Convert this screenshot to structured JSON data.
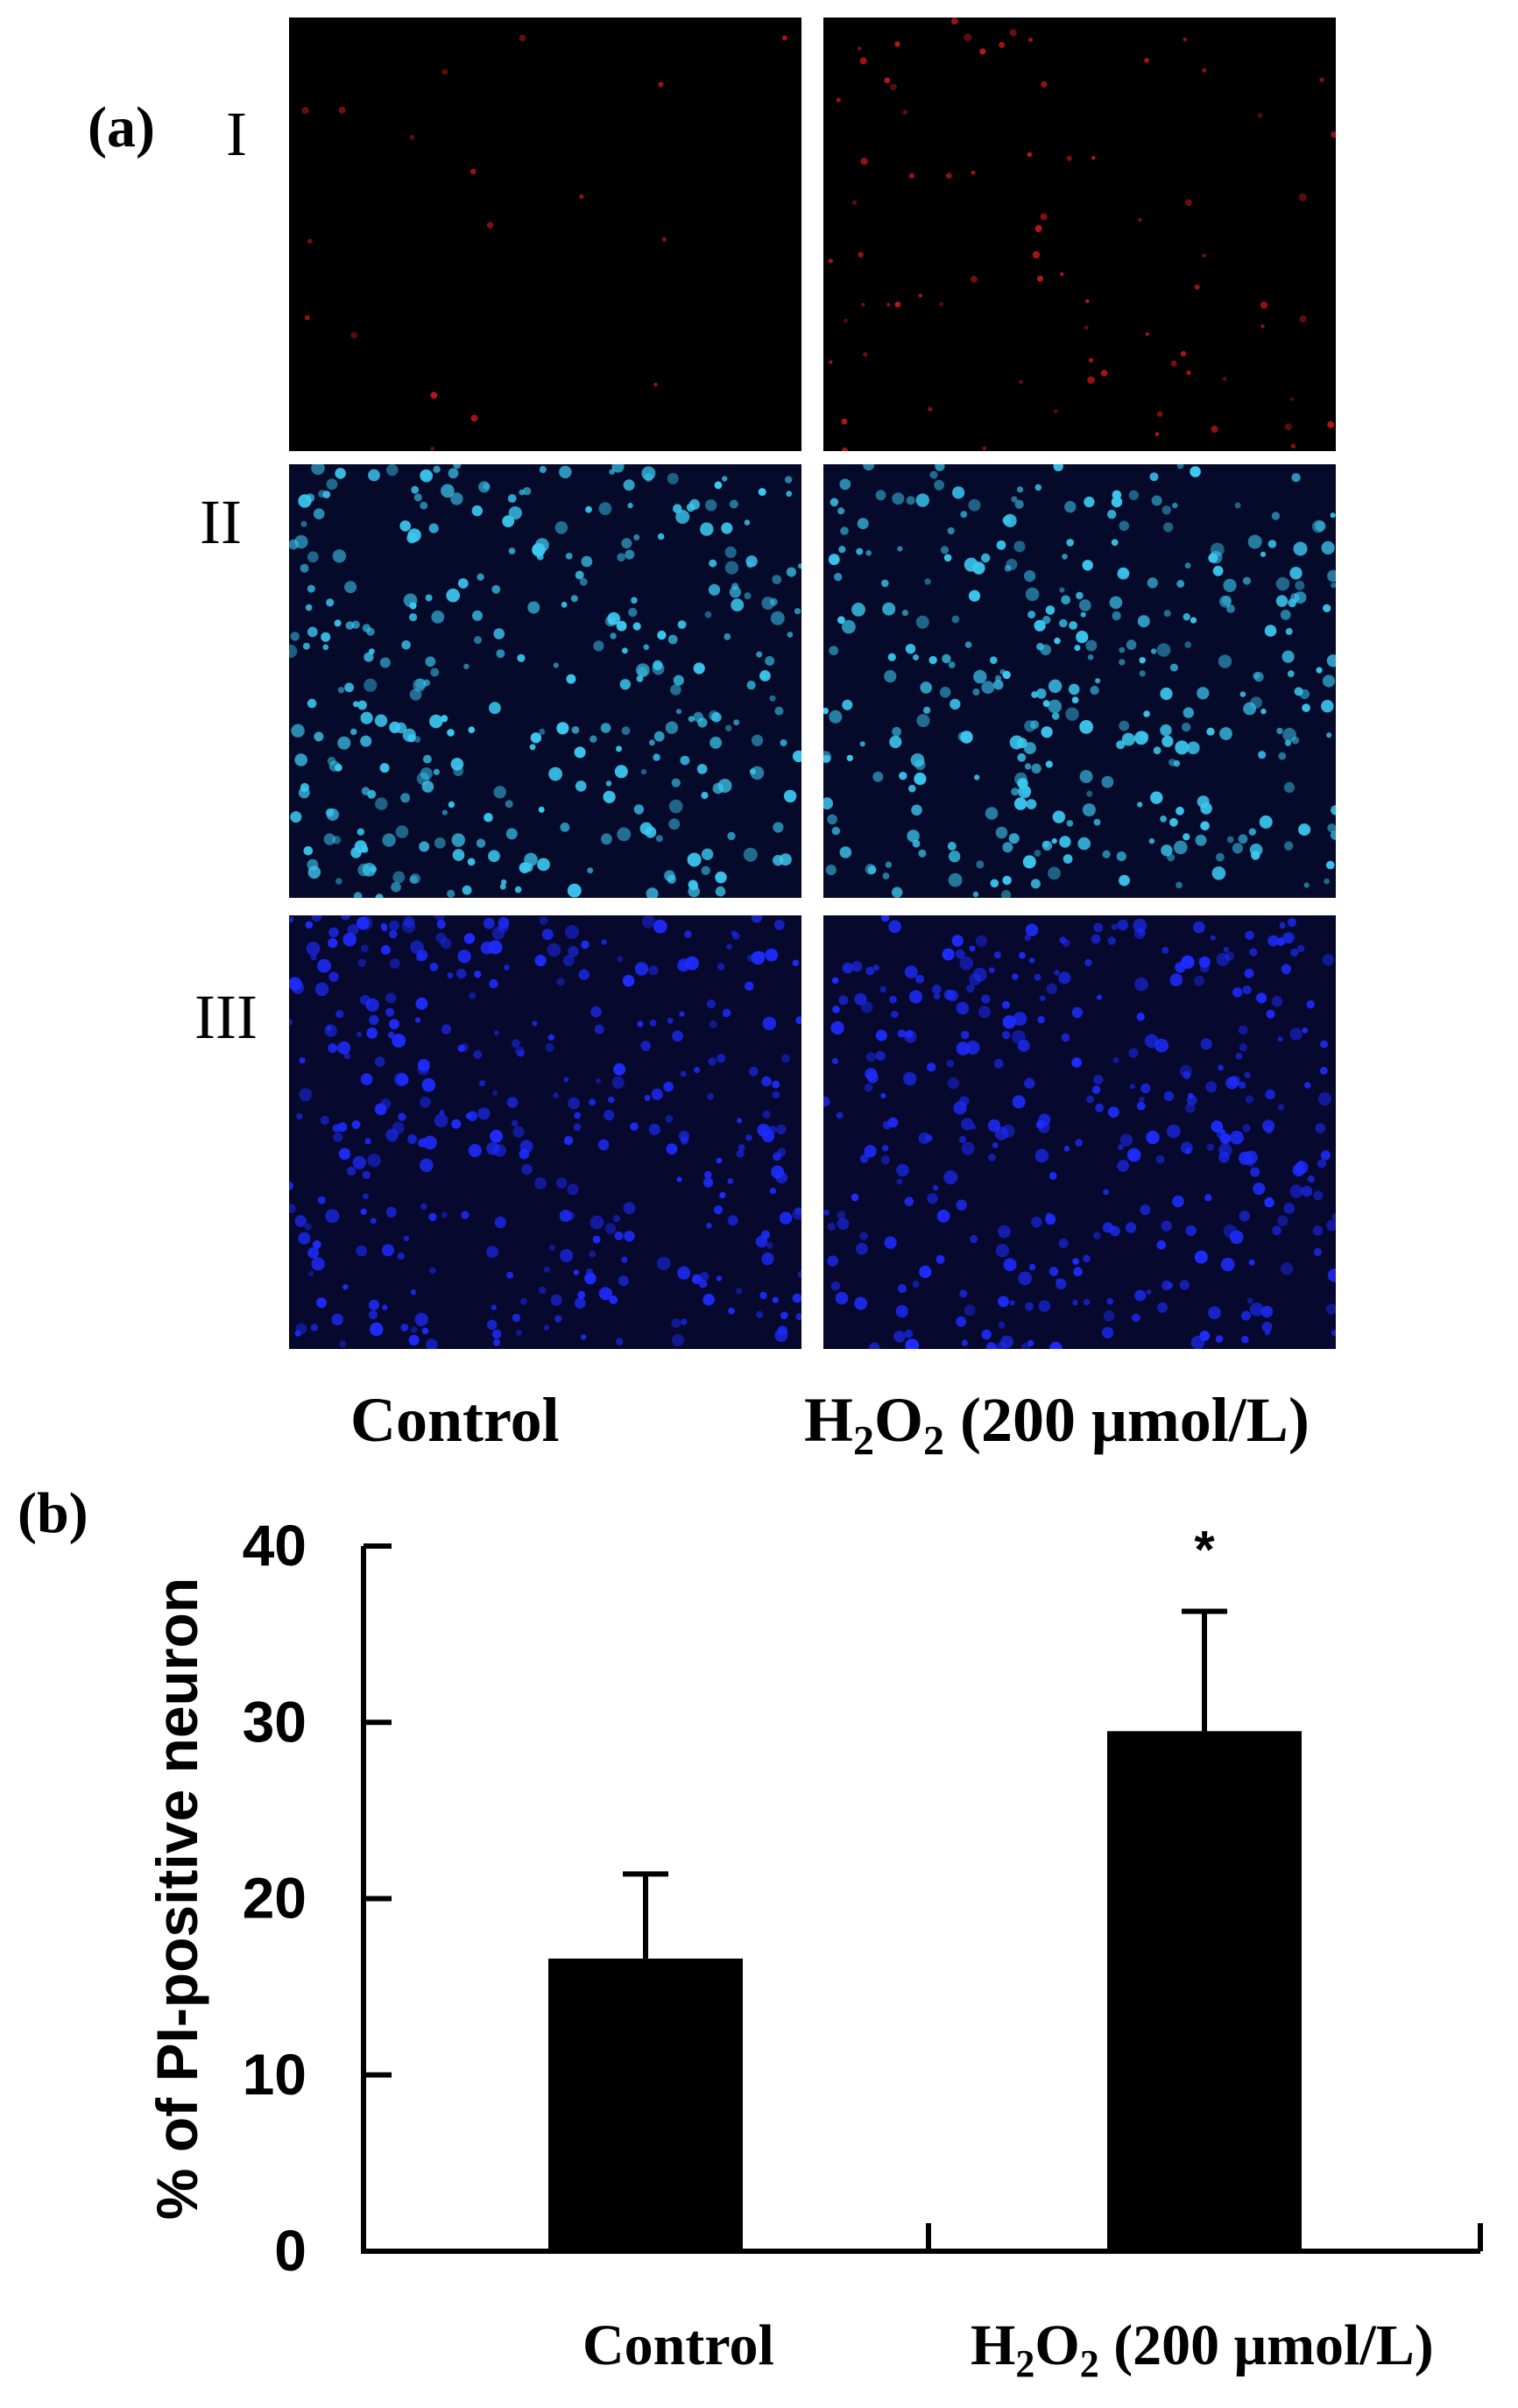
{
  "panel_a": {
    "label": "(a)",
    "row_labels": [
      "I",
      "II",
      "III"
    ],
    "column_labels": {
      "control": "Control",
      "treated_prefix": "H",
      "treated_sub1": "2",
      "treated_mid": "O",
      "treated_sub2": "2",
      "treated_suffix": " (200 μmol/L)"
    },
    "colors": {
      "row1_nuclei": "#c0161a",
      "row2_nuclei": "#3cc8f0",
      "row3_nuclei": "#1e2cff",
      "background": "#000000",
      "divider": "#ffffff"
    }
  },
  "panel_b": {
    "label": "(b)",
    "xtick_control": "Control",
    "xtick_treated_prefix": "H",
    "xtick_treated_sub1": "2",
    "xtick_treated_mid": "O",
    "xtick_treated_sub2": "2",
    "xtick_treated_suffix": " (200 μmol/L)"
  },
  "chart_data": {
    "type": "bar",
    "categories": [
      "Control",
      "H2O2 (200 μmol/L)"
    ],
    "values": [
      16.6,
      29.5
    ],
    "errors": [
      4.8,
      6.8
    ],
    "significance": [
      "",
      "*"
    ],
    "ylabel": "% of PI-positive neuron",
    "ylim": [
      0,
      40
    ],
    "yticks": [
      0,
      10,
      20,
      30,
      40
    ],
    "bar_color": "#000000",
    "grid": false
  }
}
